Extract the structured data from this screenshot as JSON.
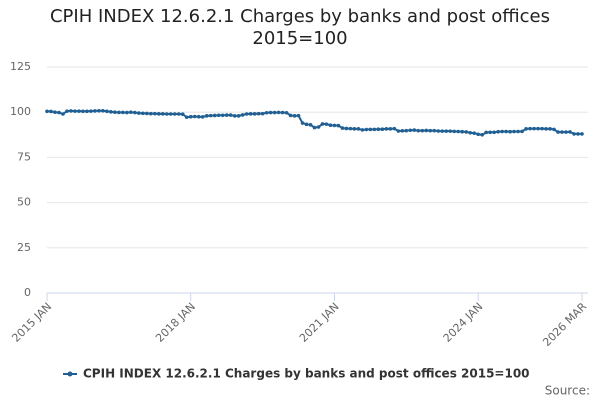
{
  "chart_data": {
    "type": "line",
    "title": "CPIH INDEX 12.6.2.1 Charges by banks and post offices 2015=100",
    "source": "Source:",
    "categories": [
      "2015 JAN",
      null,
      null,
      null,
      null,
      null,
      null,
      null,
      null,
      null,
      null,
      null,
      null,
      null,
      null,
      null,
      null,
      null,
      null,
      null,
      null,
      null,
      null,
      null,
      null,
      null,
      null,
      null,
      null,
      null,
      null,
      null,
      null,
      null,
      null,
      null,
      "2018 JAN",
      null,
      null,
      null,
      null,
      null,
      null,
      null,
      null,
      null,
      null,
      null,
      null,
      null,
      null,
      null,
      null,
      null,
      null,
      null,
      null,
      null,
      null,
      null,
      null,
      null,
      null,
      null,
      null,
      null,
      null,
      null,
      null,
      null,
      null,
      null,
      "2021 JAN",
      null,
      null,
      null,
      null,
      null,
      null,
      null,
      null,
      null,
      null,
      null,
      null,
      null,
      null,
      null,
      null,
      null,
      null,
      null,
      null,
      null,
      null,
      null,
      null,
      null,
      null,
      null,
      null,
      null,
      null,
      null,
      null,
      null,
      null,
      null,
      "2024 JAN",
      null,
      null,
      null,
      null,
      null,
      null,
      null,
      null,
      null,
      null,
      null,
      null,
      null,
      null,
      null,
      null,
      null,
      null,
      null,
      null,
      null,
      null,
      null,
      null,
      null,
      "2026 MAR"
    ],
    "series": [
      {
        "name": "CPIH INDEX 12.6.2.1 Charges by banks and post offices 2015=100",
        "color": "#206095",
        "values": [
          100.5,
          100.4,
          100,
          99.8,
          99,
          100.6,
          100.7,
          100.6,
          100.6,
          100.5,
          100.5,
          100.6,
          100.7,
          100.8,
          100.8,
          100.5,
          100.2,
          100,
          99.9,
          99.9,
          99.8,
          100,
          99.8,
          99.5,
          99.4,
          99.3,
          99.2,
          99.2,
          99.1,
          99.1,
          99,
          99,
          99,
          99,
          98.9,
          97.2,
          97.5,
          97.6,
          97.5,
          97.4,
          98,
          98.1,
          98.2,
          98.3,
          98.3,
          98.4,
          98.4,
          98,
          98,
          98.5,
          99,
          99.1,
          99.1,
          99.2,
          99.2,
          99.7,
          99.8,
          99.8,
          99.9,
          99.8,
          99.7,
          98.2,
          98,
          98.1,
          94,
          93.3,
          93,
          91.5,
          91.8,
          93.5,
          93.4,
          92.8,
          92.7,
          92.6,
          91.2,
          91,
          90.9,
          90.8,
          90.8,
          90.2,
          90.4,
          90.5,
          90.5,
          90.6,
          90.6,
          90.8,
          90.8,
          90.9,
          89.6,
          89.7,
          89.8,
          90,
          90.1,
          89.8,
          89.8,
          89.9,
          89.8,
          89.8,
          89.6,
          89.5,
          89.5,
          89.5,
          89.4,
          89.3,
          89.2,
          89.1,
          88.6,
          88.4,
          87.8,
          87.5,
          88.8,
          88.9,
          88.9,
          89.2,
          89.3,
          89.3,
          89.2,
          89.3,
          89.3,
          89.4,
          90.8,
          90.9,
          90.9,
          90.9,
          90.9,
          90.8,
          90.8,
          90.5,
          89,
          89,
          89,
          89.1,
          88,
          88,
          88
        ]
      }
    ],
    "ylim": [
      0,
      125
    ],
    "yticks": [
      0,
      25,
      50,
      75,
      100,
      125
    ],
    "grid": true,
    "legend": "bottom"
  }
}
